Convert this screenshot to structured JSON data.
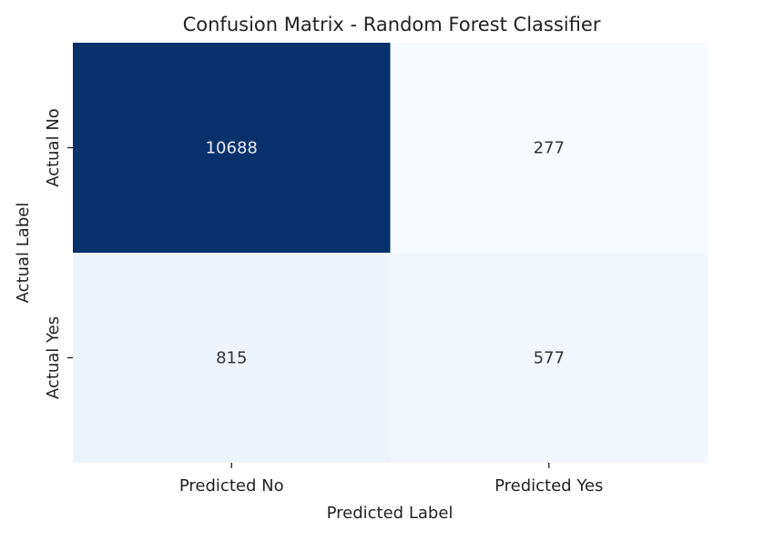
{
  "chart_data": {
    "type": "heatmap",
    "title": "Confusion Matrix - Random Forest Classifier",
    "xlabel": "Predicted Label",
    "ylabel": "Actual Label",
    "x_categories": [
      "Predicted No",
      "Predicted Yes"
    ],
    "y_categories": [
      "Actual No",
      "Actual Yes"
    ],
    "values": [
      [
        10688,
        277
      ],
      [
        815,
        577
      ]
    ],
    "colormap": "Blues",
    "colorbar": false,
    "colors": {
      "low": "#f7fbff",
      "high": "#08306b",
      "text_dark": "#333333",
      "text_light": "#e8eef7"
    }
  }
}
